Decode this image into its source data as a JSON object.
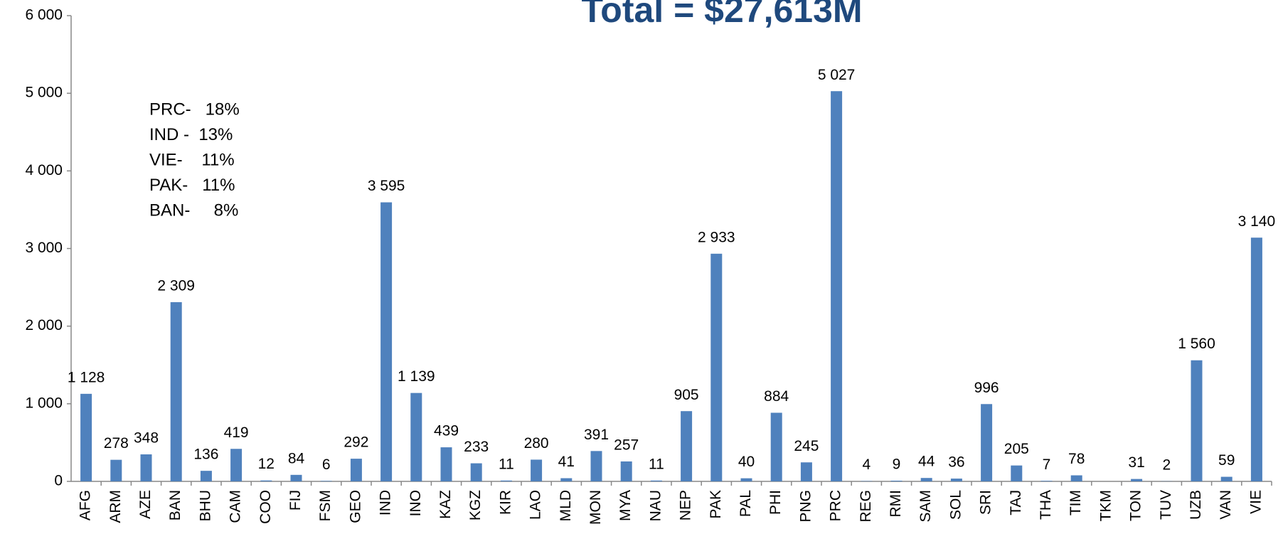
{
  "chart_data": {
    "type": "bar",
    "title": "Total = $27,613M",
    "annotations": [
      "PRC-   18%",
      "IND -  13%",
      "VIE-    11%",
      "PAK-   11%",
      "BAN-     8%"
    ],
    "categories": [
      "AFG",
      "ARM",
      "AZE",
      "BAN",
      "BHU",
      "CAM",
      "COO",
      "FIJ",
      "FSM",
      "GEO",
      "IND",
      "INO",
      "KAZ",
      "KGZ",
      "KIR",
      "LAO",
      "MLD",
      "MON",
      "MYA",
      "NAU",
      "NEP",
      "PAK",
      "PAL",
      "PHI",
      "PNG",
      "PRC",
      "REG",
      "RMI",
      "SAM",
      "SOL",
      "SRI",
      "TAJ",
      "THA",
      "TIM",
      "TKM",
      "TON",
      "TUV",
      "UZB",
      "VAN",
      "VIE"
    ],
    "values": [
      1128,
      278,
      348,
      2309,
      136,
      419,
      12,
      84,
      6,
      292,
      3595,
      1139,
      439,
      233,
      11,
      280,
      41,
      391,
      257,
      11,
      905,
      2933,
      40,
      884,
      245,
      5027,
      4,
      9,
      44,
      36,
      996,
      205,
      7,
      78,
      null,
      31,
      2,
      1560,
      59,
      3140
    ],
    "value_labels": [
      "1 128",
      "278",
      "348",
      "2 309",
      "136",
      "419",
      "12",
      "84",
      "6",
      "292",
      "3 595",
      "1 139",
      "439",
      "233",
      "11",
      "280",
      "41",
      "391",
      "257",
      "11",
      "905",
      "2 933",
      "40",
      "884",
      "245",
      "5 027",
      "4",
      "9",
      "44",
      "36",
      "996",
      "205",
      "7",
      "78",
      null,
      "31",
      "2",
      "1 560",
      "59",
      "3 140"
    ],
    "color": "#4f81bd",
    "ylim": [
      0,
      6000
    ],
    "yticks": [
      0,
      {
        "value": 1000,
        "label": "1 000"
      },
      {
        "value": 2000,
        "label": "2 000"
      },
      {
        "value": 3000,
        "label": "3 000"
      },
      {
        "value": 4000,
        "label": "4 000"
      },
      {
        "value": 5000,
        "label": "5 000"
      },
      {
        "value": 6000,
        "label": "6 000"
      }
    ],
    "grid": false
  }
}
